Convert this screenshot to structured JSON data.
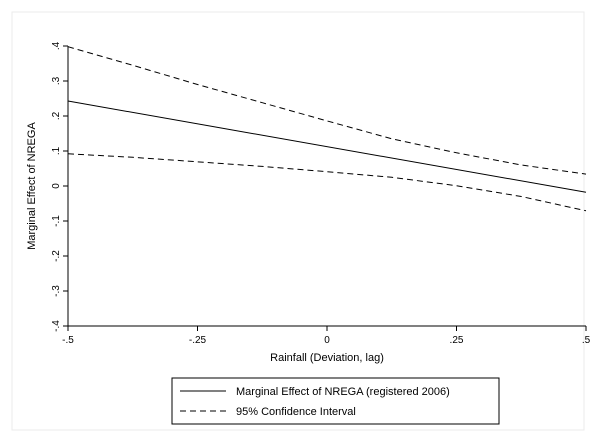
{
  "chart_data": {
    "type": "line",
    "xlabel": "Rainfall (Deviation, lag)",
    "ylabel": "Marginal Effect of NREGA",
    "xlim": [
      -0.5,
      0.5
    ],
    "ylim": [
      -0.4,
      0.4
    ],
    "x_ticks": [
      -0.5,
      -0.25,
      0,
      0.25,
      0.5
    ],
    "x_tick_labels": [
      "-.5",
      "-.25",
      "0",
      ".25",
      ".5"
    ],
    "y_ticks": [
      -0.4,
      -0.3,
      -0.2,
      -0.1,
      0,
      0.1,
      0.2,
      0.3,
      0.4
    ],
    "y_tick_labels": [
      "-.4",
      "-.3",
      "-.2",
      "-.1",
      "0",
      ".1",
      ".2",
      ".3",
      ".4"
    ],
    "grid": false,
    "legend_position": "bottom",
    "series": [
      {
        "name": "Marginal Effect of NREGA (registered 2006)",
        "style": "solid",
        "x": [
          -0.5,
          0.5
        ],
        "y": [
          0.243,
          -0.018
        ]
      },
      {
        "name": "95% Confidence Interval",
        "style": "dashed",
        "x": [
          -0.5,
          -0.375,
          -0.25,
          -0.125,
          0,
          0.125,
          0.25,
          0.375,
          0.5
        ],
        "y": [
          0.398,
          0.345,
          0.29,
          0.238,
          0.186,
          0.135,
          0.095,
          0.06,
          0.034
        ]
      },
      {
        "style": "dashed",
        "x": [
          -0.5,
          -0.375,
          -0.25,
          -0.125,
          0,
          0.125,
          0.25,
          0.375,
          0.5
        ],
        "y": [
          0.092,
          0.082,
          0.069,
          0.056,
          0.041,
          0.025,
          0.001,
          -0.03,
          -0.071
        ]
      }
    ]
  }
}
